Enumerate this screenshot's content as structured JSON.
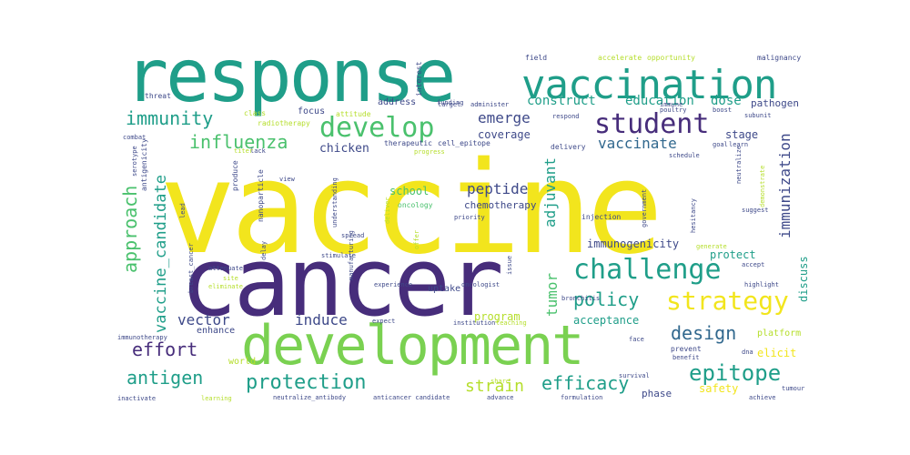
{
  "words": {
    "vaccine": "vaccine",
    "cancer": "cancer",
    "response": "response",
    "development": "development",
    "vaccination": "vaccination",
    "develop": "develop",
    "challenge": "challenge",
    "student": "student",
    "strategy": "strategy",
    "immunity": "immunity",
    "influenza": "influenza",
    "epitope": "epitope",
    "antigen": "antigen",
    "protection": "protection",
    "effort": "effort",
    "design": "design",
    "policy": "policy",
    "efficacy": "efficacy",
    "strain": "strain",
    "vaccinate": "vaccinate",
    "peptide": "peptide",
    "emerge": "emerge",
    "vector": "vector",
    "induce": "induce",
    "approach": "approach",
    "vaccine_candidate": "vaccine_candidate",
    "immunization": "immunization",
    "adjuvant": "adjuvant",
    "tumor": "tumor",
    "construct": "construct",
    "education": "education",
    "dose": "dose",
    "pathogen": "pathogen",
    "coverage": "coverage",
    "chicken": "chicken",
    "stage": "stage",
    "school": "school",
    "chemotherapy": "chemotherapy",
    "immunogenicity": "immunogenicity",
    "protect": "protect",
    "discuss": "discuss",
    "program": "program",
    "acceptance": "acceptance",
    "elicit": "elicit",
    "safety": "safety",
    "phase": "phase",
    "enhance": "enhance",
    "world": "world",
    "uptake": "uptake",
    "address": "address",
    "focus": "focus",
    "platform": "platform",
    "oncology": "oncology",
    "injection": "injection",
    "therapeutic": "therapeutic",
    "cell_epitope": "cell_epitope",
    "delivery": "delivery",
    "radiotherapy": "radiotherapy",
    "attitude": "attitude",
    "class": "class",
    "threat": "threat",
    "field": "field",
    "accelerate": "accelerate",
    "opportunity": "opportunity",
    "malignancy": "malignancy",
    "interest": "interest",
    "funding": "funding",
    "target": "target",
    "administer": "administer",
    "respond": "respond",
    "boost": "boost",
    "subunit": "subunit",
    "combat": "combat",
    "produce": "produce",
    "nanoparticle": "nanoparticle",
    "antigenicity": "antigenicity",
    "serotype": "serotype",
    "lead": "lead",
    "breast_cancer": "breast_cancer",
    "immunotherapy": "immunotherapy",
    "spread": "spread",
    "stimulate": "stimulate",
    "experience": "experience",
    "oncologist": "oncologist",
    "institution": "institution",
    "expect": "expect",
    "teaching": "teaching",
    "neutralize": "neutralize",
    "demonstrate": "demonstrate",
    "hesitancy": "hesitancy",
    "suggest": "suggest",
    "accept": "accept",
    "highlight": "highlight",
    "prevent": "prevent",
    "benefit": "benefit",
    "dna": "dna",
    "survival": "survival",
    "tumour": "tumour",
    "achieve": "achieve",
    "formulation": "formulation",
    "advance": "advance",
    "share": "share",
    "anticancer_candidate": "anticancer candidate",
    "neutralize_antibody": "neutralize_antibody",
    "learning": "learning",
    "inactivate": "inactivate",
    "understanding": "understanding",
    "manufacturing": "manufacturing",
    "priority": "priority",
    "government": "government",
    "deliver": "deliver",
    "attenuate": "attenuate",
    "delay": "delay",
    "schedule": "schedule",
    "goal": "goal",
    "learn": "learn",
    "progress": "progress",
    "view": "view",
    "lack": "lack",
    "titer": "titer",
    "issue": "issue",
    "offer": "offer",
    "poultry": "poultry",
    "immune": "immune",
    "face": "face",
    "bronchitis": "bronchitis",
    "generate": "generate",
    "site": "site",
    "eliminate": "eliminate"
  }
}
